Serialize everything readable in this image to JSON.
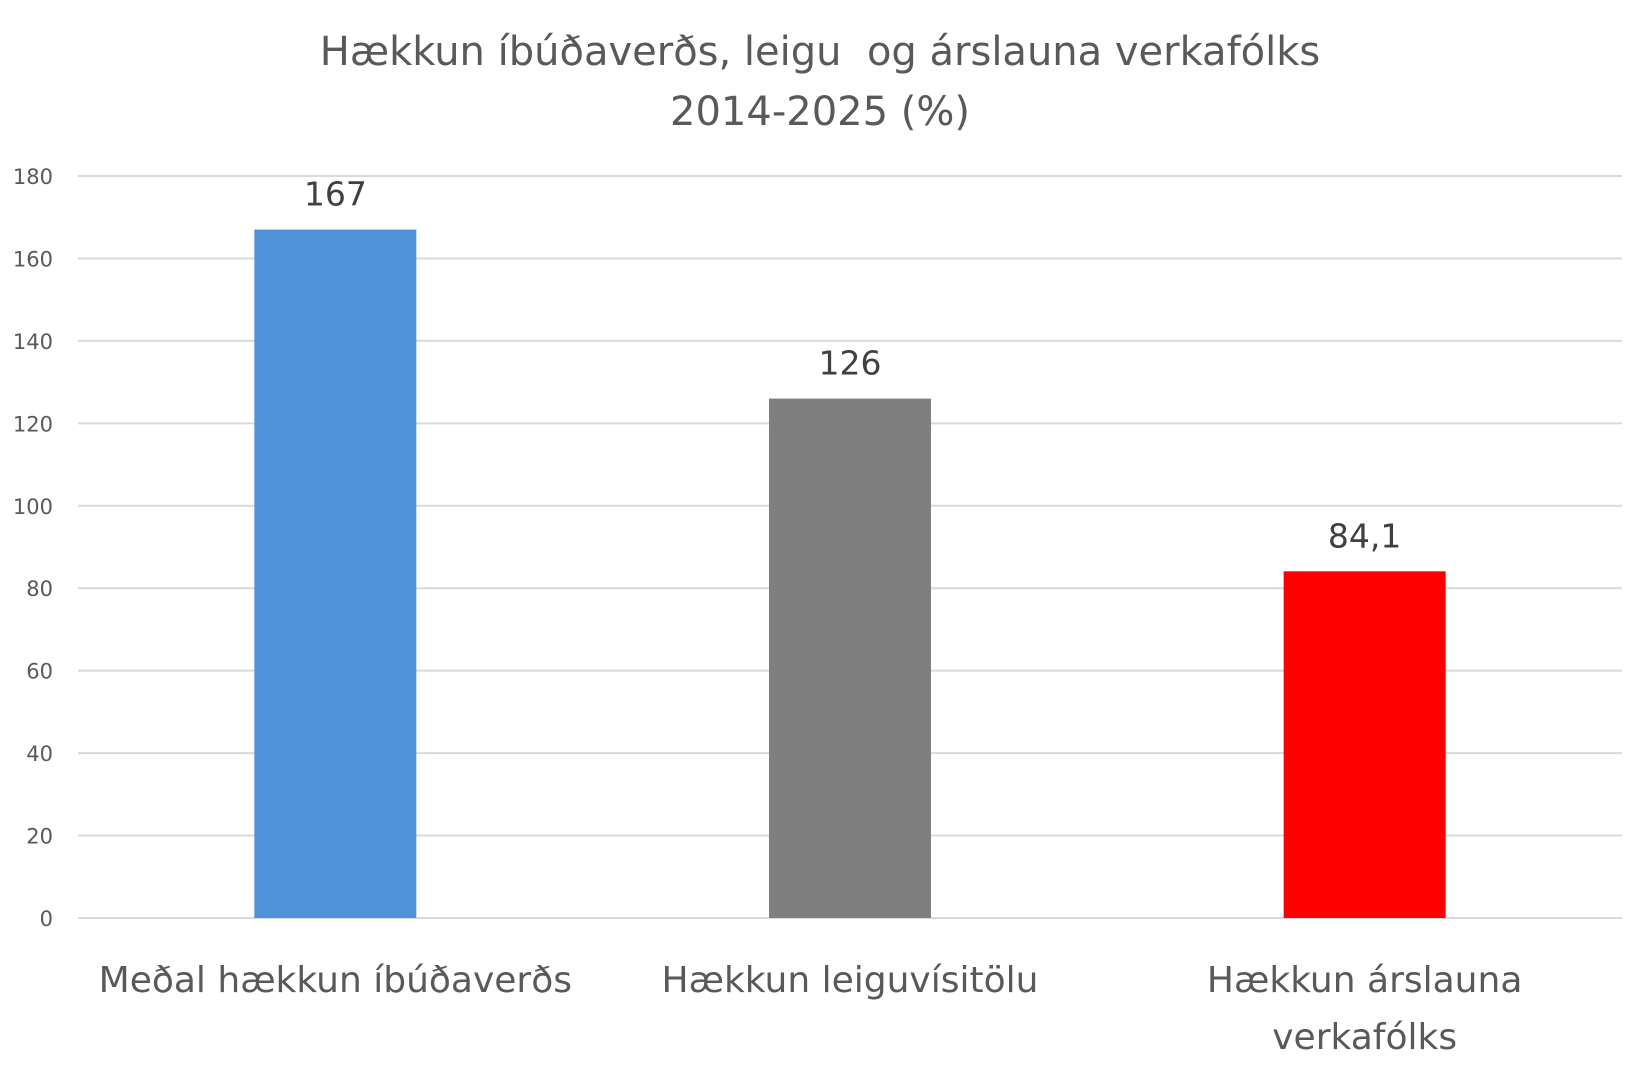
{
  "chart_data": {
    "type": "bar",
    "title_lines": [
      "Hækkun íbúðaverðs, leigu  og árslauna verkafólks",
      "2014-2025 (%)"
    ],
    "categories": [
      [
        "Meðal hækkun íbúðaverðs"
      ],
      [
        "Hækkun leiguvísitölu"
      ],
      [
        "Hækkun árslauna",
        "verkafólks"
      ]
    ],
    "values": [
      167,
      126,
      84.1
    ],
    "data_labels": [
      "167",
      "126",
      "84,1"
    ],
    "colors": [
      "#4f94d8",
      "#7f7f7f",
      "#ff0000"
    ],
    "ylim": [
      0,
      180
    ],
    "yticks": [
      0,
      20,
      40,
      60,
      80,
      100,
      120,
      140,
      160,
      180
    ],
    "grid": true,
    "legend": "none",
    "xlabel": "",
    "ylabel": ""
  }
}
